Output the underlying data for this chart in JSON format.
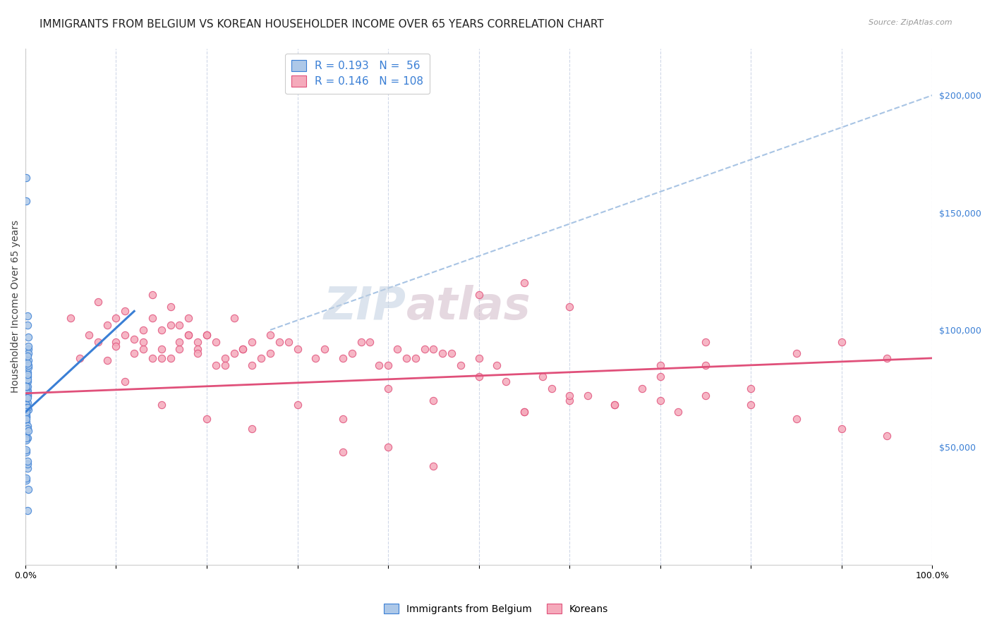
{
  "title": "IMMIGRANTS FROM BELGIUM VS KOREAN HOUSEHOLDER INCOME OVER 65 YEARS CORRELATION CHART",
  "source": "Source: ZipAtlas.com",
  "ylabel": "Householder Income Over 65 years",
  "xlim": [
    0,
    1.0
  ],
  "ylim": [
    0,
    220000
  ],
  "xtick_positions": [
    0.0,
    0.1,
    0.2,
    0.3,
    0.4,
    0.5,
    0.6,
    0.7,
    0.8,
    0.9,
    1.0
  ],
  "xticklabels": [
    "0.0%",
    "",
    "",
    "",
    "",
    "",
    "",
    "",
    "",
    "",
    "100.0%"
  ],
  "yticks_right": [
    50000,
    100000,
    150000,
    200000
  ],
  "ytick_labels_right": [
    "$50,000",
    "$100,000",
    "$150,000",
    "$200,000"
  ],
  "watermark": "ZIPatlas",
  "legend_R1": "R = 0.193",
  "legend_N1": "N =  56",
  "legend_R2": "R = 0.146",
  "legend_N2": "N = 108",
  "belgium_color": "#adc8e8",
  "korean_color": "#f5aabb",
  "belgium_line_color": "#3a7fd5",
  "korean_line_color": "#e0507a",
  "dashed_line_color": "#a8c4e4",
  "belgium_scatter_x": [
    0.001,
    0.002,
    0.001,
    0.003,
    0.002,
    0.001,
    0.002,
    0.001,
    0.003,
    0.002,
    0.001,
    0.002,
    0.003,
    0.001,
    0.002,
    0.002,
    0.003,
    0.001,
    0.002,
    0.001,
    0.002,
    0.001,
    0.003,
    0.002,
    0.001,
    0.002,
    0.001,
    0.002,
    0.003,
    0.001,
    0.002,
    0.001,
    0.002,
    0.003,
    0.001,
    0.002,
    0.001,
    0.002,
    0.001,
    0.002,
    0.003,
    0.002,
    0.001,
    0.002,
    0.001,
    0.003,
    0.002,
    0.001,
    0.002,
    0.001,
    0.002,
    0.001,
    0.003,
    0.002,
    0.001,
    0.002
  ],
  "belgium_scatter_y": [
    75000,
    82000,
    165000,
    66000,
    72000,
    69000,
    73000,
    155000,
    92000,
    102000,
    63000,
    80000,
    87000,
    64000,
    106000,
    74000,
    84000,
    74000,
    69000,
    61000,
    59000,
    56000,
    97000,
    78000,
    68000,
    41000,
    67000,
    23000,
    90000,
    36000,
    72000,
    48000,
    54000,
    85000,
    53000,
    76000,
    63000,
    67000,
    49000,
    79000,
    93000,
    58000,
    71000,
    86000,
    37000,
    32000,
    43000,
    62000,
    81000,
    54000,
    71000,
    65000,
    57000,
    44000,
    76000,
    89000
  ],
  "korean_scatter_x": [
    0.05,
    0.07,
    0.08,
    0.1,
    0.06,
    0.09,
    0.11,
    0.12,
    0.08,
    0.1,
    0.13,
    0.11,
    0.14,
    0.09,
    0.15,
    0.1,
    0.16,
    0.12,
    0.14,
    0.13,
    0.17,
    0.15,
    0.18,
    0.14,
    0.16,
    0.13,
    0.19,
    0.17,
    0.11,
    0.18,
    0.2,
    0.15,
    0.21,
    0.19,
    0.16,
    0.22,
    0.18,
    0.23,
    0.24,
    0.17,
    0.2,
    0.22,
    0.25,
    0.19,
    0.26,
    0.24,
    0.21,
    0.27,
    0.28,
    0.23,
    0.3,
    0.25,
    0.32,
    0.29,
    0.27,
    0.35,
    0.33,
    0.38,
    0.4,
    0.36,
    0.42,
    0.39,
    0.44,
    0.37,
    0.46,
    0.43,
    0.48,
    0.41,
    0.5,
    0.47,
    0.52,
    0.45,
    0.55,
    0.58,
    0.6,
    0.53,
    0.62,
    0.65,
    0.57,
    0.68,
    0.7,
    0.72,
    0.75,
    0.8,
    0.85,
    0.9,
    0.95,
    0.5,
    0.3,
    0.35,
    0.4,
    0.45,
    0.55,
    0.6,
    0.65,
    0.7,
    0.75,
    0.8,
    0.85,
    0.9,
    0.95,
    0.5,
    0.55,
    0.6,
    0.35,
    0.4,
    0.45,
    0.25,
    0.2,
    0.15,
    0.7,
    0.75
  ],
  "korean_scatter_y": [
    105000,
    98000,
    112000,
    95000,
    88000,
    102000,
    108000,
    90000,
    95000,
    105000,
    92000,
    98000,
    115000,
    87000,
    100000,
    93000,
    110000,
    96000,
    88000,
    95000,
    102000,
    92000,
    98000,
    105000,
    88000,
    100000,
    95000,
    92000,
    78000,
    105000,
    98000,
    88000,
    95000,
    92000,
    102000,
    88000,
    98000,
    105000,
    92000,
    95000,
    98000,
    85000,
    95000,
    90000,
    88000,
    92000,
    85000,
    98000,
    95000,
    90000,
    92000,
    85000,
    88000,
    95000,
    90000,
    88000,
    92000,
    95000,
    85000,
    90000,
    88000,
    85000,
    92000,
    95000,
    90000,
    88000,
    85000,
    92000,
    88000,
    90000,
    85000,
    92000,
    65000,
    75000,
    70000,
    78000,
    72000,
    68000,
    80000,
    75000,
    70000,
    65000,
    72000,
    68000,
    62000,
    58000,
    55000,
    80000,
    68000,
    62000,
    75000,
    70000,
    65000,
    72000,
    68000,
    80000,
    85000,
    75000,
    90000,
    95000,
    88000,
    115000,
    120000,
    110000,
    48000,
    50000,
    42000,
    58000,
    62000,
    68000,
    85000,
    95000
  ],
  "belgium_trendline_x": [
    0.0,
    0.12
  ],
  "belgium_trendline_y": [
    65000,
    108000
  ],
  "korean_trendline_x": [
    0.0,
    1.0
  ],
  "korean_trendline_y": [
    73000,
    88000
  ],
  "dashed_trendline_x": [
    0.27,
    1.0
  ],
  "dashed_trendline_y": [
    100000,
    200000
  ],
  "background_color": "#ffffff",
  "grid_color": "#d0d8e8",
  "title_fontsize": 11,
  "axis_label_fontsize": 10,
  "tick_fontsize": 9,
  "watermark_color": "#c8d8e8",
  "watermark_fontsize": 46,
  "legend_fontsize": 11
}
